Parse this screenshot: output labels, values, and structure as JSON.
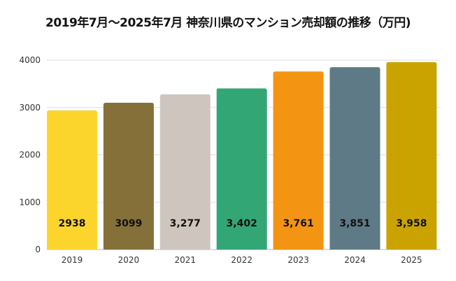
{
  "chart_data": {
    "type": "bar",
    "title": "2019年7月～2025年7月 神奈川県のマンション売却額の推移（万円)",
    "xlabel": "",
    "ylabel": "",
    "categories": [
      "2019",
      "2020",
      "2021",
      "2022",
      "2023",
      "2024",
      "2025"
    ],
    "values": [
      2938,
      3099,
      3277,
      3402,
      3761,
      3851,
      3958
    ],
    "data_labels": [
      "2938",
      "3099",
      "3,277",
      "3,402",
      "3,761",
      "3,851",
      "3,958"
    ],
    "colors": [
      "#FBD52B",
      "#86703A",
      "#CEC5BE",
      "#33A676",
      "#F49413",
      "#5F7A87",
      "#CBA300"
    ],
    "ylim": [
      0,
      4000
    ],
    "yticks": [
      0,
      1000,
      2000,
      3000,
      4000
    ],
    "grid": true,
    "legend": "none"
  }
}
